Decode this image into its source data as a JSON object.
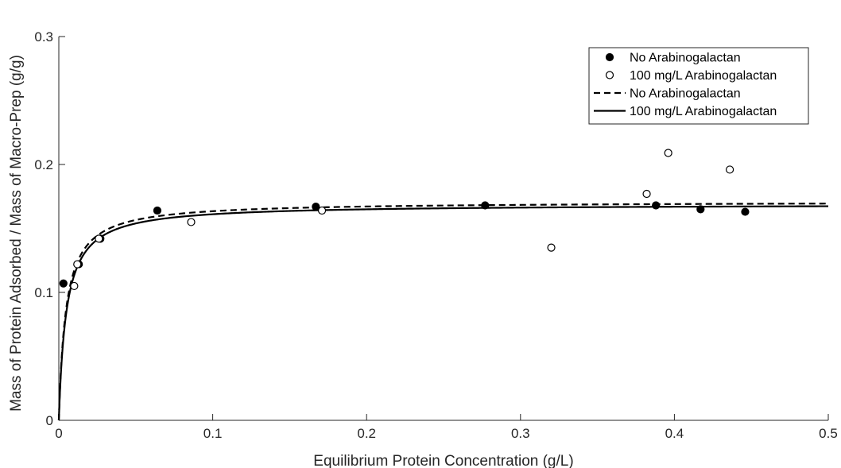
{
  "chart_data": {
    "type": "scatter",
    "title": "",
    "xlabel": "Equilibrium Protein Concentration (g/L)",
    "ylabel": "Mass of Protein Adsorbed / Mass of Macro-Prep (g/g)",
    "xlim": [
      0,
      0.5
    ],
    "ylim": [
      0,
      0.3
    ],
    "xticks": [
      "0",
      "0.1",
      "0.2",
      "0.3",
      "0.4",
      "0.5"
    ],
    "yticks": [
      "0",
      "0.1",
      "0.2",
      "0.3"
    ],
    "grid": false,
    "legend_position": "top-right",
    "series": [
      {
        "name": "No Arabinogalactan",
        "kind": "points",
        "marker": "filled-circle",
        "points": [
          [
            0.003,
            0.107
          ],
          [
            0.013,
            0.122
          ],
          [
            0.027,
            0.142
          ],
          [
            0.064,
            0.164
          ],
          [
            0.167,
            0.167
          ],
          [
            0.277,
            0.168
          ],
          [
            0.388,
            0.168
          ],
          [
            0.417,
            0.165
          ],
          [
            0.446,
            0.163
          ]
        ]
      },
      {
        "name": "100 mg/L Arabinogalactan",
        "kind": "points",
        "marker": "open-circle",
        "points": [
          [
            0.01,
            0.105
          ],
          [
            0.012,
            0.122
          ],
          [
            0.026,
            0.142
          ],
          [
            0.086,
            0.155
          ],
          [
            0.171,
            0.164
          ],
          [
            0.32,
            0.135
          ],
          [
            0.382,
            0.177
          ],
          [
            0.396,
            0.209
          ],
          [
            0.436,
            0.196
          ]
        ]
      },
      {
        "name": "No Arabinogalactan",
        "kind": "line",
        "style": "dashed",
        "qmax": 0.171,
        "kd": 0.0046
      },
      {
        "name": "100 mg/L Arabinogalactan",
        "kind": "line",
        "style": "solid",
        "qmax": 0.169,
        "kd": 0.0049
      }
    ]
  }
}
